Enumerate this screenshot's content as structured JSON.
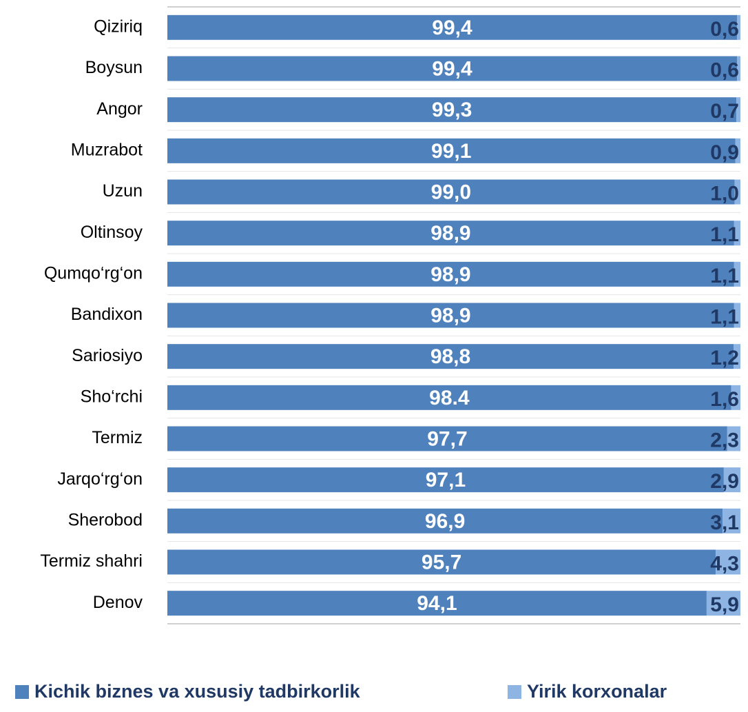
{
  "chart_data": {
    "type": "stacked-bar-horizontal",
    "categories": [
      "Qiziriq",
      "Boysun",
      "Angor",
      "Muzrabot",
      "Uzun",
      "Oltinsoy",
      "Qumqo‘rg‘on",
      "Bandixon",
      "Sariosiyo",
      "Sho‘rchi",
      "Termiz",
      "Jarqo‘rg‘on",
      "Sherobod",
      "Termiz shahri",
      "Denov"
    ],
    "series": [
      {
        "name": "Kichik biznes va xususiy tadbirkorlik",
        "color": "#4f81bd",
        "values": [
          99.4,
          99.4,
          99.3,
          99.1,
          99.0,
          98.9,
          98.9,
          98.9,
          98.8,
          98.4,
          97.7,
          97.1,
          96.9,
          95.7,
          94.1
        ],
        "value_labels": [
          "99,4",
          "99,4",
          "99,3",
          "99,1",
          "99,0",
          "98,9",
          "98,9",
          "98,9",
          "98,8",
          "98.4",
          "97,7",
          "97,1",
          "96,9",
          "95,7",
          "94,1"
        ]
      },
      {
        "name": "Yirik korxonalar",
        "color": "#8eb4e3",
        "values": [
          0.6,
          0.6,
          0.7,
          0.9,
          1.0,
          1.1,
          1.1,
          1.1,
          1.2,
          1.6,
          2.3,
          2.9,
          3.1,
          4.3,
          5.9
        ],
        "value_labels": [
          "0,6",
          "0,6",
          "0,7",
          "0,9",
          "1,0",
          "1,1",
          "1,1",
          "1,1",
          "1,2",
          "1,6",
          "2,3",
          "2,9",
          "3,1",
          "4,3",
          "5,9"
        ]
      }
    ],
    "xlim": [
      0,
      100
    ],
    "legend": "bottom"
  }
}
